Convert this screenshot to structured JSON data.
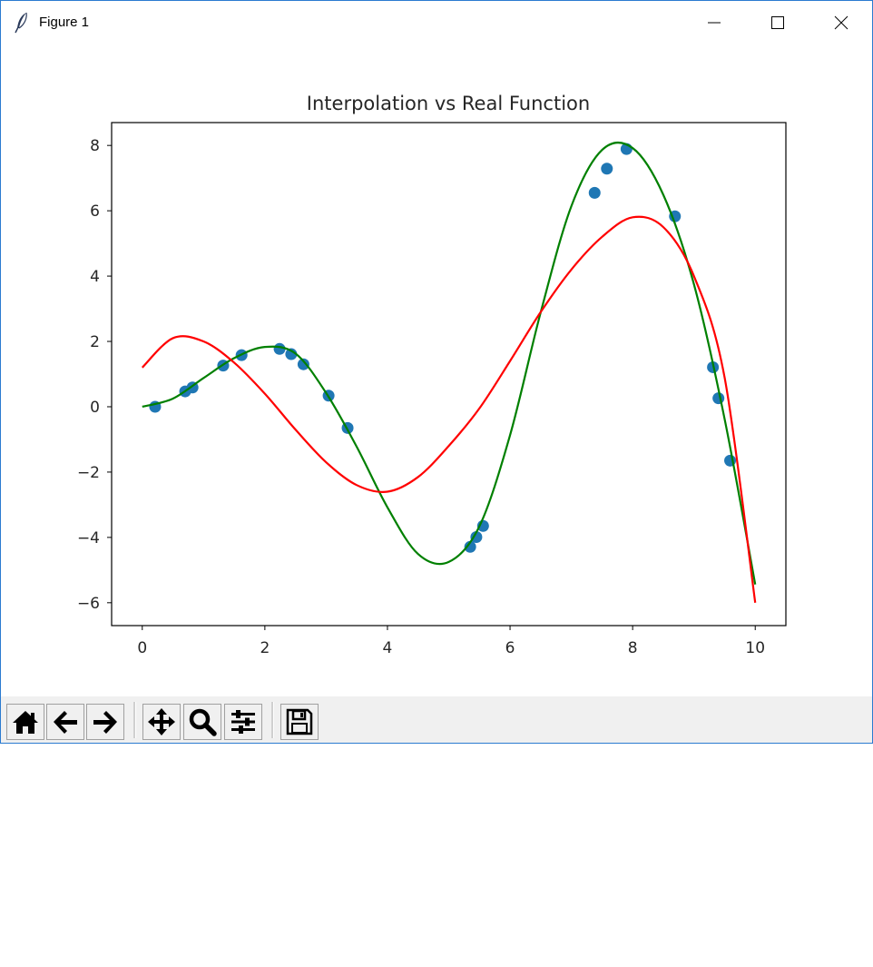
{
  "window": {
    "title": "Figure 1",
    "controls": {
      "minimize_icon": "minimize-icon",
      "maximize_icon": "maximize-icon",
      "close_icon": "close-icon"
    }
  },
  "toolbar": {
    "buttons": [
      {
        "id": "home",
        "icon": "home-icon"
      },
      {
        "id": "back",
        "icon": "arrow-left-icon"
      },
      {
        "id": "forward",
        "icon": "arrow-right-icon"
      },
      {
        "id": "pan",
        "icon": "move-icon"
      },
      {
        "id": "zoom",
        "icon": "magnifier-icon"
      },
      {
        "id": "configure",
        "icon": "sliders-icon"
      },
      {
        "id": "save",
        "icon": "floppy-disk-icon"
      }
    ]
  },
  "chart_data": {
    "type": "line",
    "title": "Interpolation vs Real Function",
    "xlabel": "",
    "ylabel": "",
    "xlim": [
      -0.5,
      10.5
    ],
    "ylim": [
      -6.7,
      8.7
    ],
    "xticks": [
      0,
      2,
      4,
      6,
      8,
      10
    ],
    "xtick_labels": [
      "0",
      "2",
      "4",
      "6",
      "8",
      "10"
    ],
    "yticks": [
      -6,
      -4,
      -2,
      0,
      2,
      4,
      6,
      8
    ],
    "ytick_labels": [
      "−6",
      "−4",
      "−2",
      "0",
      "2",
      "4",
      "6",
      "8"
    ],
    "grid": false,
    "series": [
      {
        "type": "scatter",
        "color": "#1f77b4",
        "x": [
          0.21,
          0.7,
          0.82,
          1.32,
          1.62,
          2.24,
          2.43,
          2.63,
          3.04,
          3.35,
          5.35,
          5.45,
          5.56,
          7.38,
          7.58,
          7.9,
          8.69,
          9.31,
          9.4,
          9.59
        ],
        "y": [
          0.0,
          0.47,
          0.59,
          1.26,
          1.58,
          1.77,
          1.61,
          1.3,
          0.34,
          -0.65,
          -4.29,
          -3.99,
          -3.65,
          6.55,
          7.29,
          7.89,
          5.83,
          1.21,
          0.26,
          -1.65
        ]
      },
      {
        "type": "line",
        "color": "#008000",
        "x": [
          0,
          0.5,
          1.0,
          1.5,
          2.0,
          2.5,
          3.0,
          3.5,
          4.0,
          4.5,
          5.0,
          5.5,
          6.0,
          6.5,
          7.0,
          7.5,
          8.0,
          8.5,
          9.0,
          9.5,
          10.0
        ],
        "y": [
          0.0,
          0.25,
          0.88,
          1.49,
          1.83,
          1.63,
          0.42,
          -1.23,
          -3.08,
          -4.51,
          -4.75,
          -3.66,
          -0.87,
          2.89,
          6.14,
          7.86,
          7.92,
          6.49,
          3.75,
          -0.37,
          -5.44
        ]
      },
      {
        "type": "line",
        "color": "#ff0000",
        "x": [
          0,
          0.5,
          1.0,
          1.5,
          2.0,
          2.5,
          3.0,
          3.5,
          4.0,
          4.5,
          5.0,
          5.5,
          6.0,
          6.5,
          7.0,
          7.5,
          8.0,
          8.5,
          9.0,
          9.5,
          10.0
        ],
        "y": [
          1.2,
          2.1,
          2.0,
          1.35,
          0.4,
          -0.7,
          -1.7,
          -2.4,
          -2.6,
          -2.15,
          -1.2,
          -0.05,
          1.4,
          2.9,
          4.2,
          5.2,
          5.8,
          5.5,
          4.0,
          0.9,
          -6.0
        ]
      }
    ]
  }
}
